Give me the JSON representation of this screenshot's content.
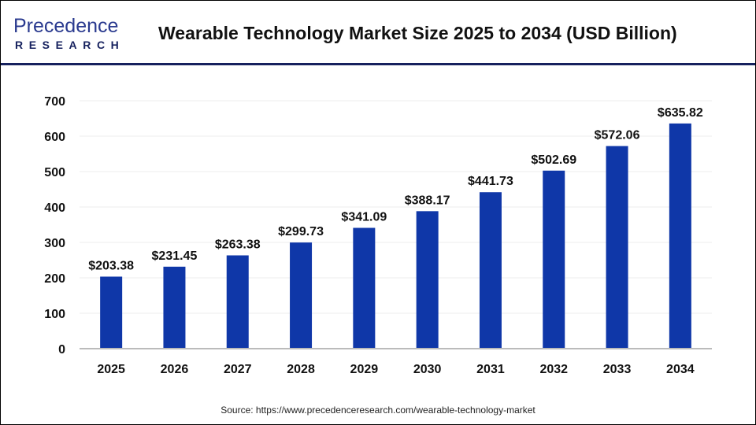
{
  "header": {
    "logo_line1": "Precedence",
    "logo_line2": "RESEARCH",
    "title": "Wearable Technology Market Size 2025 to 2034 (USD Billion)"
  },
  "source": "Source: https://www.precedenceresearch.com/wearable-technology-market",
  "chart_data": {
    "type": "bar",
    "title": "Wearable Technology Market Size 2025 to 2034 (USD Billion)",
    "categories": [
      "2025",
      "2026",
      "2027",
      "2028",
      "2029",
      "2030",
      "2031",
      "2032",
      "2033",
      "2034"
    ],
    "values": [
      203.38,
      231.45,
      263.38,
      299.73,
      341.09,
      388.17,
      441.73,
      502.69,
      572.06,
      635.82
    ],
    "data_labels": [
      "$203.38",
      "$231.45",
      "$263.38",
      "$299.73",
      "$341.09",
      "$388.17",
      "$441.73",
      "$502.69",
      "$572.06",
      "$635.82"
    ],
    "ylim": [
      0,
      700
    ],
    "yticks": [
      0,
      100,
      200,
      300,
      400,
      500,
      600,
      700
    ],
    "grid": true,
    "bar_color": "#0f37a8",
    "xlabel": "",
    "ylabel": ""
  }
}
